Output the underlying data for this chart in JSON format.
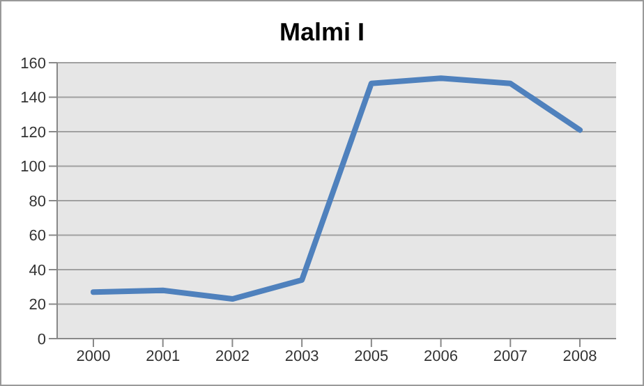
{
  "chart_data": {
    "type": "line",
    "title": "Malmi I",
    "categories": [
      "2000",
      "2001",
      "2002",
      "2003",
      "2005",
      "2006",
      "2007",
      "2008"
    ],
    "series": [
      {
        "color": "#4f81bd",
        "values": [
          27,
          28,
          23,
          34,
          148,
          151,
          148,
          121
        ]
      }
    ],
    "ylim": [
      0,
      160
    ],
    "yticks": [
      0,
      20,
      40,
      60,
      80,
      100,
      120,
      140,
      160
    ],
    "grid": "y",
    "marker": "none",
    "line_style": "solid"
  }
}
